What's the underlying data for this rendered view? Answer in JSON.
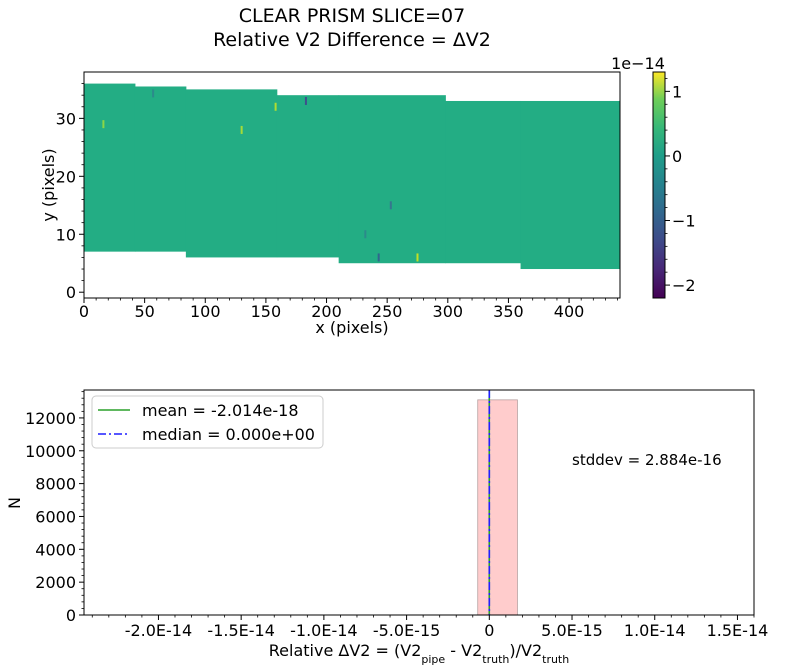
{
  "title_line1": "CLEAR   PRISM   SLICE=07",
  "title_line2": "Relative V2 Difference = ΔV2",
  "chart_data": [
    {
      "type": "heatmap",
      "xlabel": "x (pixels)",
      "ylabel": "y (pixels)",
      "xlim": [
        0,
        442
      ],
      "ylim": [
        -1,
        38
      ],
      "xticks": [
        "0",
        "50",
        "100",
        "150",
        "200",
        "250",
        "300",
        "350",
        "400"
      ],
      "yticks": [
        "0",
        "10",
        "20",
        "30"
      ],
      "grid": false,
      "colorbar": {
        "range": [
          -2.2e-14,
          1.3e-14
        ],
        "offset_label": "1e−14",
        "tick_labels": [
          "1",
          "0",
          "−1",
          "−2"
        ],
        "tick_values": [
          1,
          0,
          -1,
          -2
        ],
        "colormap": "viridis"
      },
      "filled_segments": [
        {
          "x": [
            0,
            42
          ],
          "y": [
            7,
            36
          ]
        },
        {
          "x": [
            42,
            84
          ],
          "y": [
            7,
            35.5
          ]
        },
        {
          "x": [
            84,
            159
          ],
          "y": [
            6,
            35
          ]
        },
        {
          "x": [
            159,
            210
          ],
          "y": [
            6,
            34
          ]
        },
        {
          "x": [
            210,
            298
          ],
          "y": [
            5,
            34
          ]
        },
        {
          "x": [
            298,
            360
          ],
          "y": [
            5,
            33
          ]
        },
        {
          "x": [
            360,
            442
          ],
          "y": [
            4,
            33
          ]
        }
      ],
      "fill_color": "#23ad84",
      "outliers": [
        {
          "x": 57,
          "y": 34.3,
          "color": "#2c8a8b"
        },
        {
          "x": 183,
          "y": 33,
          "color": "#3f4f8d"
        },
        {
          "x": 158,
          "y": 32,
          "color": "#b0dd30"
        },
        {
          "x": 16,
          "y": 29,
          "color": "#8bd646"
        },
        {
          "x": 130,
          "y": 28,
          "color": "#a6db38"
        },
        {
          "x": 253,
          "y": 15,
          "color": "#37768e"
        },
        {
          "x": 232,
          "y": 10,
          "color": "#2c8a8b"
        },
        {
          "x": 243,
          "y": 6,
          "color": "#31658e"
        },
        {
          "x": 275,
          "y": 6,
          "color": "#c2df23"
        }
      ]
    },
    {
      "type": "bar",
      "subtype": "histogram",
      "xlabel_parts": [
        "Relative ΔV2 = (V2",
        "pipe",
        " - V2",
        "truth",
        ")/V2",
        "truth"
      ],
      "ylabel": "N",
      "xlim": [
        -2.45e-14,
        1.6e-14
      ],
      "ylim": [
        0,
        13700
      ],
      "xticks": [
        "-2.0E-14",
        "-1.5E-14",
        "-1.0E-14",
        "-5.0E-15",
        "0",
        "5.0E-15",
        "1.0E-14",
        "1.5E-14"
      ],
      "xtick_values": [
        -2e-14,
        -1.5e-14,
        -1e-14,
        -5e-15,
        0,
        5e-15,
        1e-14,
        1.5e-14
      ],
      "yticks": [
        "0",
        "2000",
        "4000",
        "6000",
        "8000",
        "10000",
        "12000"
      ],
      "ytick_values": [
        0,
        2000,
        4000,
        6000,
        8000,
        10000,
        12000
      ],
      "bins": [
        {
          "x0": -7e-16,
          "x1": 1.7e-15,
          "count": 13100
        }
      ],
      "bar_color": "#ffcccc",
      "lines": [
        {
          "name": "mean = -2.014e-18",
          "x": -2.014e-18,
          "color": "#2ca02c",
          "style": "solid"
        },
        {
          "name": "median = 0.000e+00",
          "x": 0,
          "color": "#1f1fff",
          "style": "dashdot"
        }
      ],
      "annotation": "stddev = 2.884e-16",
      "legend_position": "top-left"
    }
  ]
}
